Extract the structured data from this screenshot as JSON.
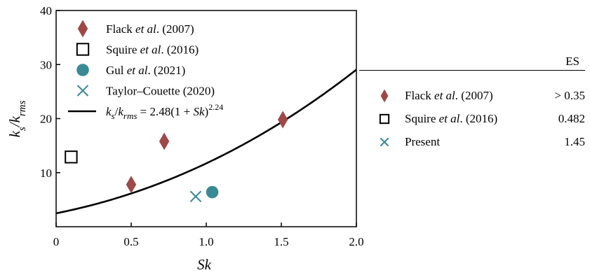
{
  "chart_data": {
    "type": "scatter",
    "xlabel": "Sk",
    "ylabel": "ks/krms",
    "xlim": [
      0,
      2.0
    ],
    "ylim": [
      0,
      40
    ],
    "xticks": [
      0,
      0.5,
      1.0,
      1.5,
      2.0
    ],
    "xtick_labels": [
      "0",
      "0.5",
      "1.0",
      "1.5",
      "2.0"
    ],
    "yticks": [
      10,
      20,
      30,
      40
    ],
    "ytick_labels": [
      "10",
      "20",
      "30",
      "40"
    ],
    "grid": false,
    "legend_position": "top-left",
    "series": [
      {
        "name": "Flack et al. (2007)",
        "marker": "diamond",
        "color": "#9e4848",
        "x": [
          0.5,
          0.72,
          1.51
        ],
        "y": [
          7.8,
          15.8,
          19.8
        ]
      },
      {
        "name": "Squire et al. (2016)",
        "marker": "open-square",
        "color": "#000000",
        "x": [
          0.1
        ],
        "y": [
          12.9
        ]
      },
      {
        "name": "Gul et al. (2021)",
        "marker": "circle",
        "color": "#3a8a96",
        "x": [
          1.04
        ],
        "y": [
          6.4
        ]
      },
      {
        "name": "Taylor–Couette (2020)",
        "marker": "x",
        "color": "#3a8a96",
        "x": [
          0.93
        ],
        "y": [
          5.6
        ]
      }
    ],
    "fit_line": {
      "label": "ks/krms = 2.48(1 + Sk)^2.24",
      "coef": 2.48,
      "exponent": 2.24,
      "color": "#000000"
    }
  },
  "legend": [
    {
      "pre": "Flack ",
      "it": "et al",
      "post": ". (2007)"
    },
    {
      "pre": "Squire ",
      "it": "et al",
      "post": ". (2016)"
    },
    {
      "pre": "Gul ",
      "it": "et al",
      "post": ". (2021)"
    },
    {
      "pre": "Taylor–Couette (2020)",
      "it": "",
      "post": ""
    }
  ],
  "table": {
    "header_es": "ES",
    "rows": [
      {
        "pre": "Flack ",
        "it": "et al",
        "post": ". (2007)",
        "value": "> 0.35",
        "marker": "diamond",
        "color": "#9e4848"
      },
      {
        "pre": "Squire ",
        "it": "et al",
        "post": ". (2016)",
        "value": "0.482",
        "marker": "open-square",
        "color": "#000000"
      },
      {
        "pre": "Present",
        "it": "",
        "post": "",
        "value": "1.45",
        "marker": "x",
        "color": "#3a8a96"
      }
    ]
  }
}
